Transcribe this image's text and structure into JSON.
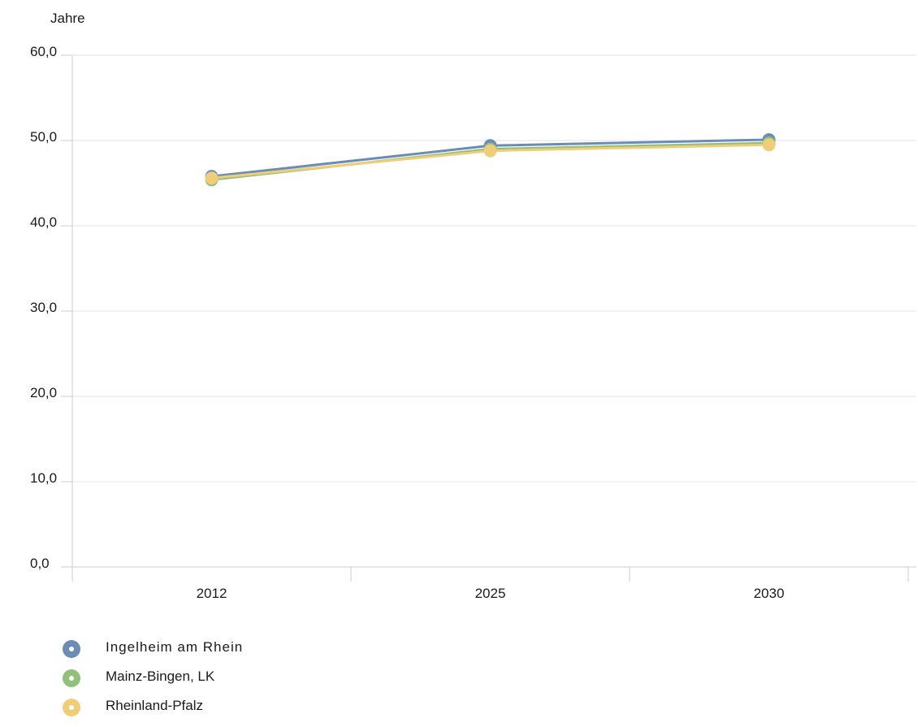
{
  "chart_data": {
    "type": "line",
    "ylabel": "Jahre",
    "xlabel": "",
    "categories": [
      "2012",
      "2025",
      "2030"
    ],
    "ylim": [
      0,
      60
    ],
    "yticks": [
      "0,0",
      "10,0",
      "20,0",
      "30,0",
      "40,0",
      "50,0",
      "60,0"
    ],
    "grid": true,
    "legend_position": "bottom-left",
    "series": [
      {
        "name": "Ingelheim am Rhein",
        "color": "#6b8cb5",
        "values": [
          45.8,
          49.4,
          50.1
        ]
      },
      {
        "name": "Mainz-Bingen, LK",
        "color": "#8fc17a",
        "values": [
          45.4,
          49.0,
          49.7
        ]
      },
      {
        "name": "Rheinland-Pfalz",
        "color": "#f0cd78",
        "values": [
          45.6,
          48.8,
          49.5
        ]
      }
    ]
  }
}
